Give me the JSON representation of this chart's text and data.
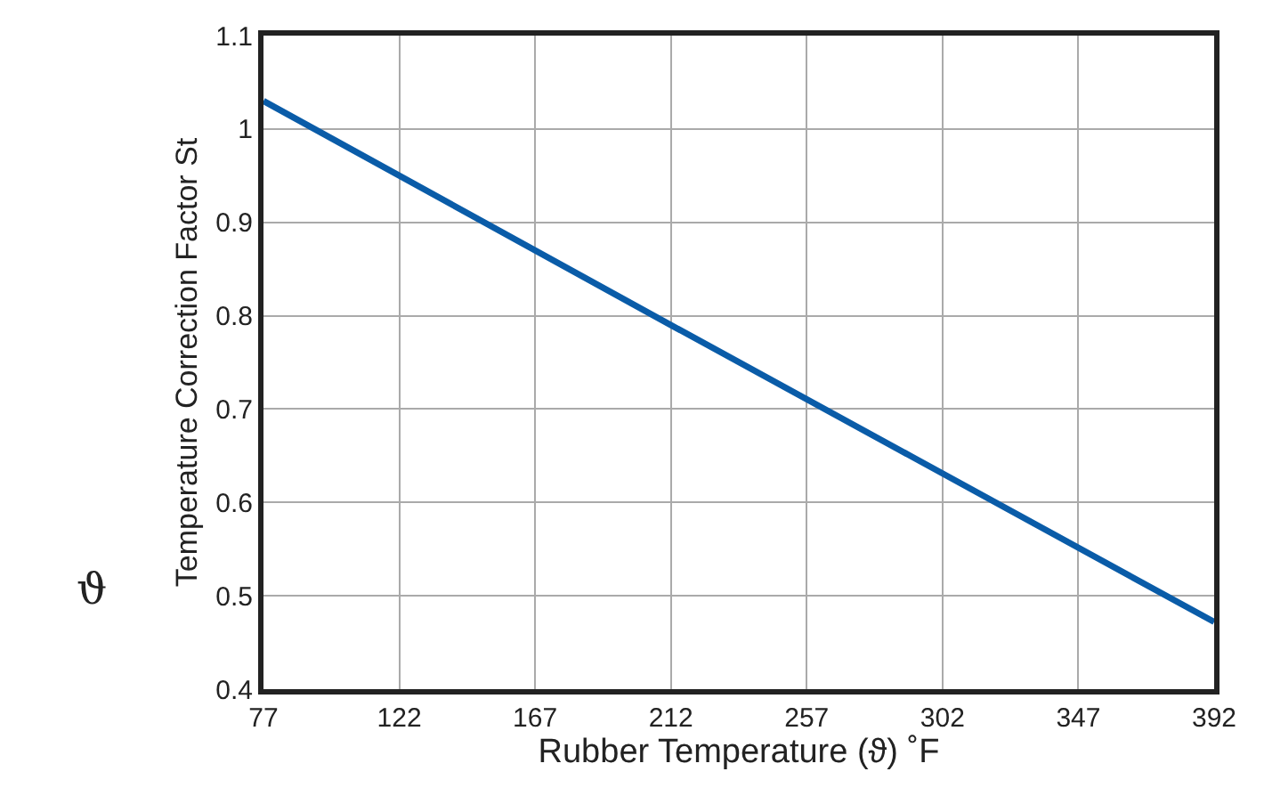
{
  "chart_data": {
    "type": "line",
    "xlabel": "Rubber Temperature (ϑ) ˚F",
    "ylabel": "Temperature Correction Factor St",
    "annotations": [
      "ϑ"
    ],
    "x": [
      77,
      212,
      392
    ],
    "series": [
      {
        "color": "#0a5ca8",
        "values": [
          1.03,
          0.79,
          0.472
        ]
      }
    ],
    "xlim": [
      77,
      392
    ],
    "xticks": [
      77,
      122,
      167,
      212,
      257,
      302,
      347,
      392
    ],
    "ylim": [
      0.4,
      1.1
    ],
    "yticks": [
      0.4,
      0.5,
      0.6,
      0.7,
      0.8,
      0.9,
      1,
      1.1
    ],
    "grid": true,
    "marker": "none",
    "line_style": "solid"
  }
}
